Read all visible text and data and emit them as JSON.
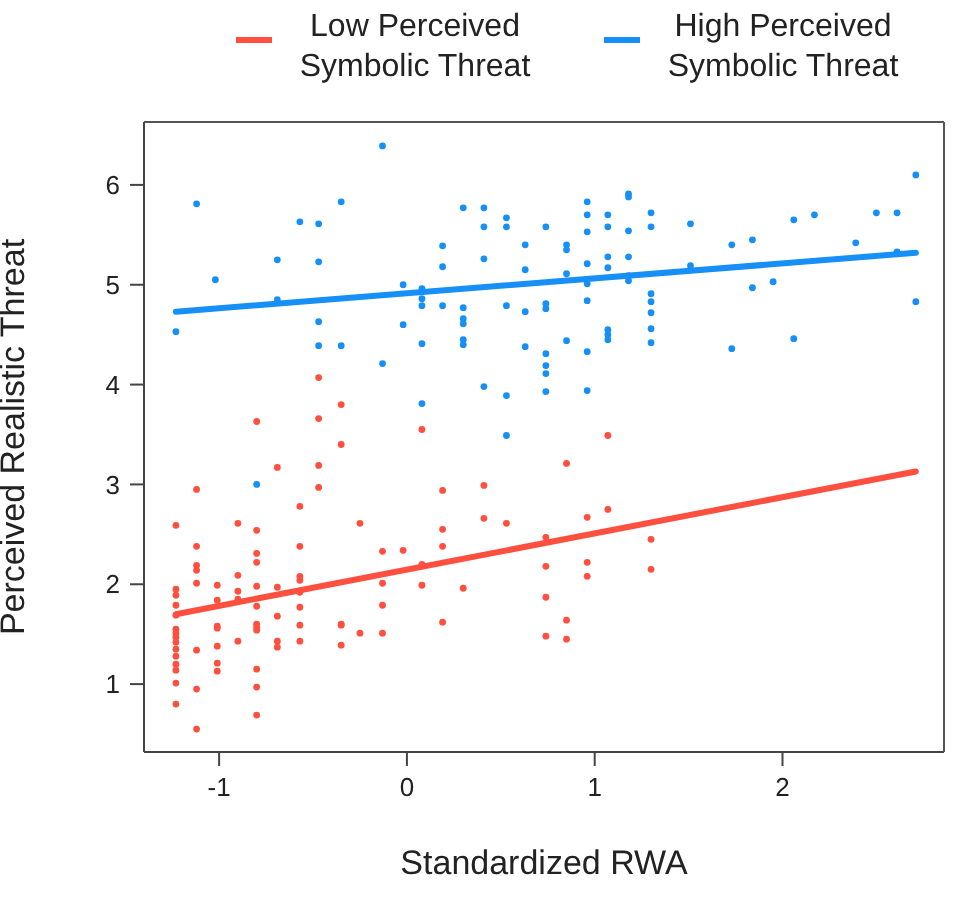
{
  "chart_data": {
    "type": "scatter",
    "xlabel": "Standardized RWA",
    "ylabel": "Perceived Realistic Threat",
    "xlim": [
      -1.4,
      2.86
    ],
    "ylim": [
      0.32,
      6.63
    ],
    "xticks": [
      -1,
      0,
      1,
      2
    ],
    "yticks": [
      1,
      2,
      3,
      4,
      5,
      6
    ],
    "legend": "top",
    "marker": "circle",
    "series": [
      {
        "color": "#ff4f3f",
        "x": [
          -1.23,
          -1.23,
          -1.23,
          -1.23,
          -1.23,
          -1.23,
          -1.23,
          -1.23,
          -1.23,
          -1.23,
          -1.23,
          -1.23,
          -1.23,
          -1.23,
          -1.23,
          -1.12,
          -1.12,
          -1.12,
          -1.12,
          -1.12,
          -1.12,
          -1.12,
          -1.12,
          -1.01,
          -1.01,
          -1.01,
          -1.01,
          -1.01,
          -1.01,
          -1.01,
          -0.9,
          -0.9,
          -0.9,
          -0.9,
          -0.9,
          -0.8,
          -0.8,
          -0.8,
          -0.8,
          -0.8,
          -0.8,
          -0.8,
          -0.8,
          -0.8,
          -0.8,
          -0.8,
          -0.8,
          -0.69,
          -0.69,
          -0.69,
          -0.69,
          -0.69,
          -0.57,
          -0.57,
          -0.57,
          -0.57,
          -0.57,
          -0.57,
          -0.57,
          -0.57,
          -0.47,
          -0.47,
          -0.47,
          -0.47,
          -0.35,
          -0.35,
          -0.35,
          -0.35,
          -0.35,
          -0.25,
          -0.25,
          -0.13,
          -0.13,
          -0.13,
          -0.13,
          -0.02,
          0.08,
          0.08,
          0.08,
          0.19,
          0.19,
          0.19,
          0.19,
          0.3,
          0.41,
          0.41,
          0.53,
          0.74,
          0.74,
          0.74,
          0.74,
          0.85,
          0.85,
          0.85,
          0.96,
          0.96,
          0.96,
          1.07,
          1.07,
          1.3,
          1.3
        ],
        "values": [
          2.59,
          1.95,
          1.89,
          1.79,
          1.69,
          1.55,
          1.51,
          1.47,
          1.42,
          1.35,
          1.28,
          1.2,
          1.14,
          1.01,
          0.8,
          2.95,
          2.38,
          2.19,
          2.14,
          2.01,
          1.34,
          0.95,
          0.55,
          1.99,
          1.84,
          1.58,
          1.56,
          1.38,
          1.21,
          1.13,
          2.61,
          2.09,
          1.93,
          1.85,
          1.43,
          3.63,
          2.54,
          2.31,
          2.22,
          1.98,
          1.78,
          1.6,
          1.57,
          1.54,
          1.15,
          0.97,
          0.69,
          3.17,
          1.97,
          1.68,
          1.43,
          1.37,
          2.78,
          2.38,
          2.08,
          2.04,
          1.92,
          1.77,
          1.59,
          1.43,
          4.07,
          3.66,
          3.19,
          2.97,
          3.8,
          3.4,
          1.6,
          1.59,
          1.39,
          2.61,
          1.51,
          2.33,
          2.01,
          1.79,
          1.51,
          2.34,
          3.55,
          2.2,
          1.99,
          2.94,
          2.55,
          2.38,
          1.62,
          1.96,
          2.99,
          2.66,
          2.61,
          2.47,
          2.18,
          1.87,
          1.48,
          3.21,
          1.64,
          1.45,
          2.67,
          2.22,
          2.08,
          3.49,
          2.75,
          2.45,
          2.15
        ]
      },
      {
        "color": "#168ff7",
        "x": [
          -1.23,
          -1.12,
          -1.02,
          -0.8,
          -0.69,
          -0.69,
          -0.57,
          -0.47,
          -0.47,
          -0.47,
          -0.47,
          -0.35,
          -0.35,
          -0.13,
          -0.13,
          -0.02,
          -0.02,
          0.08,
          0.08,
          0.08,
          0.08,
          0.08,
          0.19,
          0.19,
          0.19,
          0.3,
          0.3,
          0.3,
          0.3,
          0.3,
          0.3,
          0.41,
          0.41,
          0.41,
          0.41,
          0.53,
          0.53,
          0.53,
          0.53,
          0.53,
          0.63,
          0.63,
          0.63,
          0.63,
          0.74,
          0.74,
          0.74,
          0.74,
          0.74,
          0.74,
          0.74,
          0.85,
          0.85,
          0.85,
          0.85,
          0.96,
          0.96,
          0.96,
          0.96,
          0.96,
          0.96,
          0.96,
          0.96,
          1.07,
          1.07,
          1.07,
          1.07,
          1.07,
          1.07,
          1.07,
          1.18,
          1.18,
          1.18,
          1.18,
          1.18,
          1.18,
          1.3,
          1.3,
          1.3,
          1.3,
          1.3,
          1.3,
          1.3,
          1.51,
          1.51,
          1.73,
          1.73,
          1.84,
          1.84,
          1.95,
          2.06,
          2.06,
          2.17,
          2.39,
          2.5,
          2.61,
          2.61,
          2.71,
          2.71
        ],
        "values": [
          4.53,
          5.81,
          5.05,
          3.0,
          5.25,
          4.85,
          5.63,
          5.61,
          5.23,
          4.63,
          4.39,
          5.83,
          4.39,
          6.39,
          4.21,
          5.0,
          4.6,
          4.96,
          4.86,
          4.79,
          4.41,
          3.81,
          5.39,
          5.18,
          4.79,
          5.77,
          4.77,
          4.66,
          4.61,
          4.45,
          4.4,
          5.77,
          5.58,
          5.26,
          3.98,
          5.67,
          5.58,
          4.79,
          3.89,
          3.49,
          5.4,
          5.15,
          4.73,
          4.38,
          5.58,
          4.81,
          4.76,
          4.31,
          4.19,
          4.11,
          3.93,
          5.4,
          5.35,
          5.11,
          4.44,
          5.83,
          5.7,
          5.53,
          5.21,
          5.01,
          4.84,
          4.33,
          3.94,
          5.7,
          5.58,
          5.28,
          5.17,
          4.55,
          4.5,
          4.45,
          5.91,
          5.88,
          5.54,
          5.28,
          5.09,
          5.04,
          5.72,
          5.58,
          4.91,
          4.83,
          4.72,
          4.56,
          4.42,
          5.61,
          5.19,
          5.4,
          4.36,
          5.45,
          4.97,
          5.03,
          5.65,
          4.46,
          5.7,
          5.42,
          5.72,
          5.72,
          5.33,
          6.1,
          4.83
        ]
      },
      {
        "type": "line",
        "name": "Low Perceived Symbolic Threat",
        "color": "#ff4f3f",
        "marker": "none",
        "line_style": "solid",
        "x": [
          -1.23,
          2.71
        ],
        "values": [
          1.7,
          3.13
        ]
      },
      {
        "type": "line",
        "name": "High Perceived Symbolic Threat",
        "color": "#168ff7",
        "marker": "none",
        "line_style": "solid",
        "x": [
          -1.23,
          2.71
        ],
        "values": [
          4.73,
          5.32
        ]
      }
    ]
  }
}
